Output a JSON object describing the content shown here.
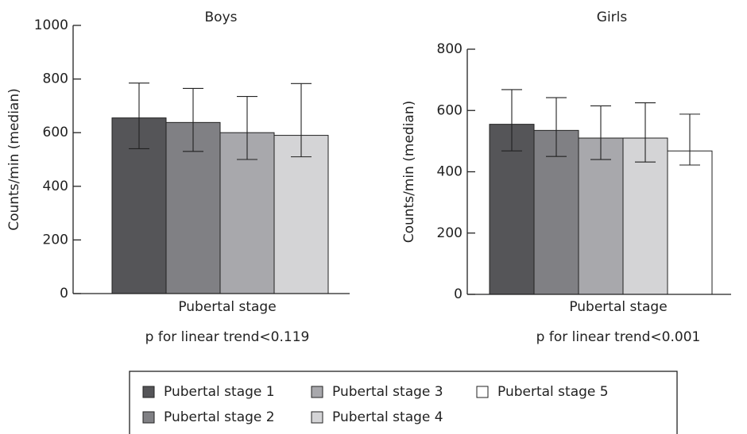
{
  "chart_data": [
    {
      "type": "bar",
      "title": "Boys",
      "ylabel": "Counts/min (median)",
      "xlabel": "Pubertal stage",
      "note": "p for linear trend<0.119",
      "ylim": [
        0,
        1000
      ],
      "yticks": [
        0,
        200,
        400,
        600,
        800,
        1000
      ],
      "values": [
        655,
        638,
        600,
        590
      ],
      "error_low": [
        540,
        530,
        500,
        510
      ],
      "error_high": [
        785,
        765,
        735,
        783
      ]
    },
    {
      "type": "bar",
      "title": "Girls",
      "ylabel": "Counts/min (median)",
      "xlabel": "Pubertal stage",
      "note": "p for linear trend<0.001",
      "ylim": [
        0,
        800
      ],
      "yticks": [
        0,
        200,
        400,
        600,
        800
      ],
      "values": [
        555,
        535,
        510,
        510,
        468
      ],
      "error_low": [
        468,
        450,
        440,
        432,
        422
      ],
      "error_high": [
        668,
        642,
        615,
        625,
        588
      ]
    }
  ],
  "legend": [
    {
      "name": "Pubertal stage 1",
      "color": "#555558"
    },
    {
      "name": "Pubertal stage 2",
      "color": "#808084"
    },
    {
      "name": "Pubertal stage 3",
      "color": "#a8a8ac"
    },
    {
      "name": "Pubertal stage 4",
      "color": "#d4d4d6"
    },
    {
      "name": "Pubertal stage 5",
      "color": "#ffffff"
    }
  ]
}
